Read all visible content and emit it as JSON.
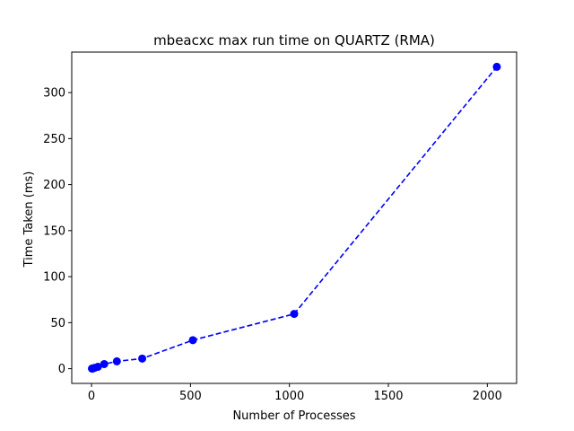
{
  "chart_data": {
    "type": "line",
    "title": "mbeacxc max run time on QUARTZ (RMA)",
    "xlabel": "Number of Processes",
    "ylabel": "Time Taken (ms)",
    "xlim": [
      -100,
      2148
    ],
    "ylim": [
      -16,
      344
    ],
    "xticks": [
      0,
      500,
      1000,
      1500,
      2000
    ],
    "yticks": [
      0,
      50,
      100,
      150,
      200,
      250,
      300
    ],
    "grid": false,
    "series": [
      {
        "color": "#0000ff",
        "line_style": "dashed",
        "marker": "circle",
        "x": [
          2,
          4,
          8,
          16,
          32,
          64,
          128,
          256,
          512,
          1024,
          2048
        ],
        "y": [
          0.1,
          0.2,
          0.4,
          1.0,
          2.0,
          5.0,
          8.0,
          11.0,
          31.0,
          59.5,
          328.0
        ]
      }
    ]
  }
}
